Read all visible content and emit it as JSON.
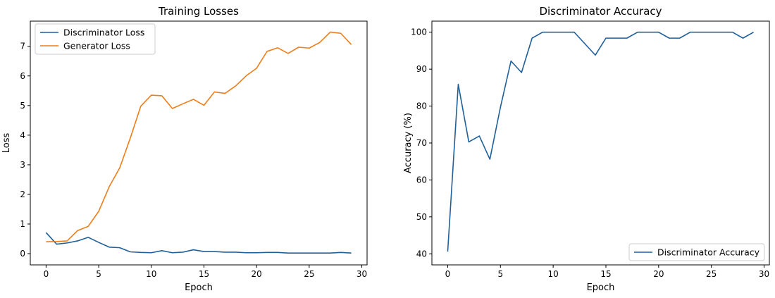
{
  "chart_data": [
    {
      "type": "line",
      "title": "Training Losses",
      "xlabel": "Epoch",
      "ylabel": "Loss",
      "xlim": [
        -1.5,
        30.5
      ],
      "ylim": [
        -0.38,
        7.85
      ],
      "xticks": [
        0,
        5,
        10,
        15,
        20,
        25,
        30
      ],
      "yticks": [
        0,
        1,
        2,
        3,
        4,
        5,
        6,
        7
      ],
      "legend_position": "top-left",
      "series": [
        {
          "name": "Discriminator Loss",
          "color": "#1f5f9a",
          "x": [
            0,
            1,
            2,
            3,
            4,
            5,
            6,
            7,
            8,
            9,
            10,
            11,
            12,
            13,
            14,
            15,
            16,
            17,
            18,
            19,
            20,
            21,
            22,
            23,
            24,
            25,
            26,
            27,
            28,
            29
          ],
          "values": [
            0.71,
            0.32,
            0.36,
            0.43,
            0.55,
            0.38,
            0.22,
            0.2,
            0.06,
            0.04,
            0.03,
            0.1,
            0.03,
            0.05,
            0.13,
            0.07,
            0.07,
            0.05,
            0.05,
            0.03,
            0.03,
            0.04,
            0.04,
            0.02,
            0.02,
            0.02,
            0.02,
            0.02,
            0.04,
            0.02
          ]
        },
        {
          "name": "Generator Loss",
          "color": "#ef7d1a",
          "x": [
            0,
            1,
            2,
            3,
            4,
            5,
            6,
            7,
            8,
            9,
            10,
            11,
            12,
            13,
            14,
            15,
            16,
            17,
            18,
            19,
            20,
            21,
            22,
            23,
            24,
            25,
            26,
            27,
            28,
            29
          ],
          "values": [
            0.4,
            0.41,
            0.43,
            0.78,
            0.92,
            1.43,
            2.26,
            2.9,
            3.9,
            4.98,
            5.35,
            5.33,
            4.9,
            5.06,
            5.21,
            5.01,
            5.46,
            5.41,
            5.66,
            6.0,
            6.26,
            6.83,
            6.95,
            6.76,
            6.97,
            6.94,
            7.13,
            7.48,
            7.44,
            7.06
          ]
        }
      ]
    },
    {
      "type": "line",
      "title": "Discriminator Accuracy",
      "xlabel": "Epoch",
      "ylabel": "Accuracy (%)",
      "xlim": [
        -1.5,
        30.5
      ],
      "ylim": [
        37.0,
        103.0
      ],
      "xticks": [
        0,
        5,
        10,
        15,
        20,
        25,
        30
      ],
      "yticks": [
        40,
        50,
        60,
        70,
        80,
        90,
        100
      ],
      "legend_position": "bottom-right",
      "series": [
        {
          "name": "Discriminator Accuracy",
          "color": "#1f5f9a",
          "x": [
            0,
            1,
            2,
            3,
            4,
            5,
            6,
            7,
            8,
            9,
            10,
            11,
            12,
            13,
            14,
            15,
            16,
            17,
            18,
            19,
            20,
            21,
            22,
            23,
            24,
            25,
            26,
            27,
            28,
            29
          ],
          "values": [
            40.6,
            85.9,
            70.3,
            71.9,
            65.6,
            79.7,
            92.2,
            89.1,
            98.4,
            100,
            100,
            100,
            100,
            96.9,
            93.8,
            98.4,
            98.4,
            98.4,
            100,
            100,
            100,
            98.4,
            98.4,
            100,
            100,
            100,
            100,
            100,
            98.4,
            100
          ]
        }
      ]
    }
  ]
}
